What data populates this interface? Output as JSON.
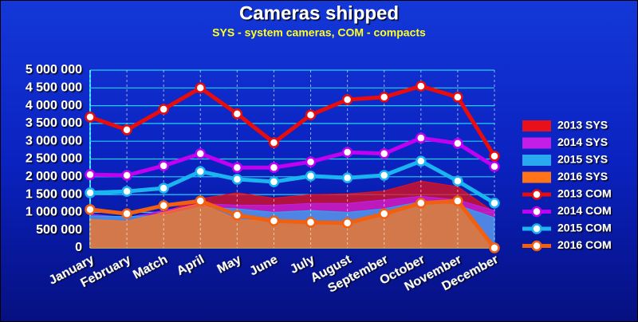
{
  "chart_data": {
    "type": "line-area",
    "title": "Cameras shipped",
    "subtitle": "SYS - system cameras, COM - compacts",
    "categories": [
      "January",
      "February",
      "Match",
      "April",
      "May",
      "June",
      "July",
      "August",
      "September",
      "October",
      "November",
      "December"
    ],
    "ylim": [
      0,
      5000000
    ],
    "yticks": [
      0,
      {
        "value": 500000,
        "label": "500 000"
      },
      {
        "value": 1000000,
        "label": "1 000 000"
      },
      {
        "value": 1500000,
        "label": "1 500 000"
      },
      {
        "value": 2000000,
        "label": "2 000 000"
      },
      {
        "value": 2500000,
        "label": "2 500 000"
      },
      {
        "value": 3000000,
        "label": "3 000 000"
      },
      {
        "value": 3500000,
        "label": "3 500 000"
      },
      {
        "value": 4000000,
        "label": "4 000 000"
      },
      {
        "value": 4500000,
        "label": "4 500 000"
      },
      {
        "value": 5000000,
        "label": "5 000 000"
      }
    ],
    "grid": true,
    "legend": "right",
    "series": [
      {
        "name": "2013 SYS",
        "type": "area",
        "color": "#e8101a",
        "values": [
          800000,
          740000,
          1000000,
          1380000,
          1550000,
          1400000,
          1500000,
          1520000,
          1600000,
          1880000,
          1720000,
          1000000
        ]
      },
      {
        "name": "2014 SYS",
        "type": "area",
        "color": "#c21ee8",
        "values": [
          950000,
          850000,
          1050000,
          1250000,
          1200000,
          1200000,
          1250000,
          1250000,
          1350000,
          1450000,
          1350000,
          1050000
        ]
      },
      {
        "name": "2015 SYS",
        "type": "area",
        "color": "#2aa8f0",
        "values": [
          900000,
          880000,
          920000,
          1150000,
          1100000,
          1000000,
          1050000,
          1000000,
          1100000,
          1300000,
          1200000,
          850000
        ]
      },
      {
        "name": "2016 SYS",
        "type": "area",
        "color": "#ff7418",
        "values": [
          800000,
          750000,
          1000000,
          1250000,
          800000,
          750000,
          750000,
          750000,
          950000,
          1250000,
          1300000,
          0
        ]
      },
      {
        "name": "2013 COM",
        "type": "line",
        "color": "#e80c0c",
        "values": [
          3680000,
          3320000,
          3900000,
          4500000,
          3770000,
          2960000,
          3740000,
          4170000,
          4240000,
          4550000,
          4240000,
          2580000
        ]
      },
      {
        "name": "2014 COM",
        "type": "line",
        "color": "#c000f0",
        "values": [
          2060000,
          2040000,
          2310000,
          2650000,
          2260000,
          2260000,
          2420000,
          2690000,
          2650000,
          3090000,
          2940000,
          2290000
        ]
      },
      {
        "name": "2015 COM",
        "type": "line",
        "color": "#1ab4f0",
        "values": [
          1550000,
          1590000,
          1680000,
          2150000,
          1930000,
          1860000,
          2020000,
          1970000,
          2040000,
          2440000,
          1880000,
          1260000
        ]
      },
      {
        "name": "2016 COM",
        "type": "line",
        "color": "#f06010",
        "values": [
          1080000,
          960000,
          1190000,
          1320000,
          920000,
          760000,
          720000,
          700000,
          960000,
          1260000,
          1320000,
          0
        ]
      }
    ]
  }
}
